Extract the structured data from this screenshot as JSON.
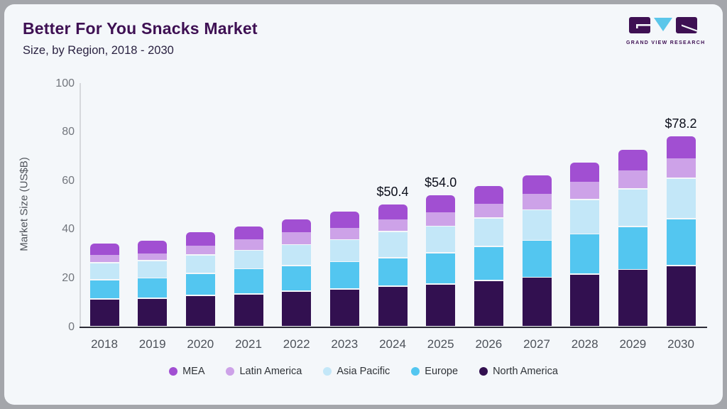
{
  "card": {
    "title": "Better For You Snacks Market",
    "subtitle": "Size, by Region, 2018 - 2030",
    "logo_text": "GRAND VIEW RESEARCH"
  },
  "colors": {
    "card_background": "#f4f7fa",
    "page_background": "#a4a6ab",
    "title_text": "#3e1053",
    "logo_dark_purple": "#3e1053",
    "logo_light_blue": "#5bc6ea",
    "axis_line": "#d6d8dc",
    "baseline": "#2c2c36"
  },
  "chart_data": {
    "type": "bar",
    "stacked": true,
    "title": "Better For You Snacks Market",
    "subtitle": "Size, by Region, 2018 - 2030",
    "xlabel": "",
    "ylabel": "Market Size (US$B)",
    "ylim": [
      0,
      100
    ],
    "yticks": [
      "0",
      "20",
      "40",
      "60",
      "80",
      "100"
    ],
    "grid": false,
    "legend_position": "bottom",
    "categories": [
      "2018",
      "2019",
      "2020",
      "2021",
      "2022",
      "2023",
      "2024",
      "2025",
      "2026",
      "2027",
      "2028",
      "2029",
      "2030"
    ],
    "series": [
      {
        "name": "North America",
        "color": "#321050",
        "values": [
          11.2,
          11.6,
          12.8,
          13.4,
          14.4,
          15.4,
          16.5,
          17.4,
          18.9,
          20.2,
          21.5,
          23.4,
          25.0
        ]
      },
      {
        "name": "Europe",
        "color": "#53c6f0",
        "values": [
          8.0,
          8.3,
          9.0,
          10.3,
          10.5,
          11.2,
          11.7,
          12.9,
          13.9,
          15.1,
          16.5,
          17.7,
          19.2
        ]
      },
      {
        "name": "Asia Pacific",
        "color": "#c3e7f8",
        "values": [
          6.9,
          7.1,
          7.6,
          7.6,
          8.7,
          9.0,
          10.7,
          10.9,
          11.7,
          12.6,
          14.1,
          15.3,
          16.7
        ]
      },
      {
        "name": "Latin America",
        "color": "#cda2e8",
        "values": [
          3.6,
          3.3,
          3.9,
          4.6,
          5.2,
          5.1,
          5.4,
          5.8,
          6.1,
          6.9,
          7.4,
          7.8,
          8.2
        ]
      },
      {
        "name": "MEA",
        "color": "#a14fd2",
        "values": [
          4.5,
          5.2,
          5.6,
          5.3,
          5.4,
          6.7,
          6.1,
          7.0,
          7.4,
          7.3,
          8.0,
          8.6,
          9.1
        ]
      }
    ],
    "legend": [
      {
        "label": "MEA",
        "color": "#a14fd2"
      },
      {
        "label": "Latin America",
        "color": "#cda2e8"
      },
      {
        "label": "Asia Pacific",
        "color": "#c3e7f8"
      },
      {
        "label": "Europe",
        "color": "#53c6f0"
      },
      {
        "label": "North America",
        "color": "#321050"
      }
    ],
    "data_labels": [
      {
        "category": "2024",
        "text": "$50.4"
      },
      {
        "category": "2025",
        "text": "$54.0"
      },
      {
        "category": "2030",
        "text": "$78.2"
      }
    ]
  }
}
